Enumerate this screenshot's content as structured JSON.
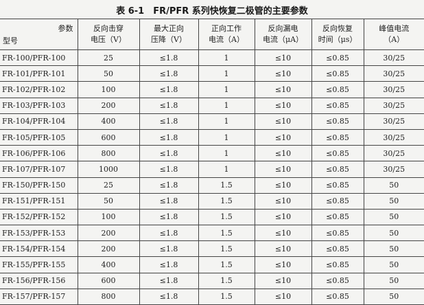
{
  "title": "表 6-1　FR/PFR 系列快恢复二极管的主要参数",
  "header": {
    "corner_param": "参数",
    "corner_model": "型号",
    "columns": [
      [
        "反向击穿",
        "电压（V）"
      ],
      [
        "最大正向",
        "压降（V）"
      ],
      [
        "正向工作",
        "电流（A）"
      ],
      [
        "反向漏电",
        "电流（μA）"
      ],
      [
        "反向恢复",
        "时间（μs）"
      ],
      [
        "峰值电流",
        "（A）"
      ]
    ]
  },
  "rows": [
    [
      "FR-100/PFR-100",
      "25",
      "≤1.8",
      "1",
      "≤10",
      "≤0.85",
      "30/25"
    ],
    [
      "FR-101/PFR-101",
      "50",
      "≤1.8",
      "1",
      "≤10",
      "≤0.85",
      "30/25"
    ],
    [
      "FR-102/PFR-102",
      "100",
      "≤1.8",
      "1",
      "≤10",
      "≤0.85",
      "30/25"
    ],
    [
      "FR-103/PFR-103",
      "200",
      "≤1.8",
      "1",
      "≤10",
      "≤0.85",
      "30/25"
    ],
    [
      "FR-104/PFR-104",
      "400",
      "≤1.8",
      "1",
      "≤10",
      "≤0.85",
      "30/25"
    ],
    [
      "FR-105/PFR-105",
      "600",
      "≤1.8",
      "1",
      "≤10",
      "≤0.85",
      "30/25"
    ],
    [
      "FR-106/PFR-106",
      "800",
      "≤1.8",
      "1",
      "≤10",
      "≤0.85",
      "30/25"
    ],
    [
      "FR-107/PFR-107",
      "1000",
      "≤1.8",
      "1",
      "≤10",
      "≤0.85",
      "30/25"
    ],
    [
      "FR-150/PFR-150",
      "25",
      "≤1.8",
      "1.5",
      "≤10",
      "≤0.85",
      "50"
    ],
    [
      "FR-151/PFR-151",
      "50",
      "≤1.8",
      "1.5",
      "≤10",
      "≤0.85",
      "50"
    ],
    [
      "FR-152/PFR-152",
      "100",
      "≤1.8",
      "1.5",
      "≤10",
      "≤0.85",
      "50"
    ],
    [
      "FR-153/PFR-153",
      "200",
      "≤1.8",
      "1.5",
      "≤10",
      "≤0.85",
      "50"
    ],
    [
      "FR-154/PFR-154",
      "200",
      "≤1.8",
      "1.5",
      "≤10",
      "≤0.85",
      "50"
    ],
    [
      "FR-155/PFR-155",
      "400",
      "≤1.8",
      "1.5",
      "≤10",
      "≤0.85",
      "50"
    ],
    [
      "FR-156/PFR-156",
      "600",
      "≤1.8",
      "1.5",
      "≤10",
      "≤0.85",
      "50"
    ],
    [
      "FR-157/PFR-157",
      "800",
      "≤1.8",
      "1.5",
      "≤10",
      "≤0.85",
      "50"
    ]
  ]
}
